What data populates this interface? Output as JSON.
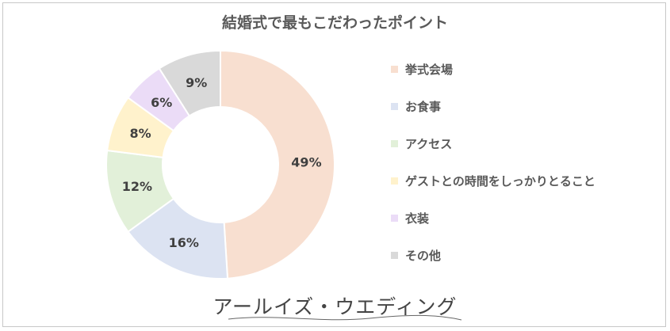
{
  "chart_data": {
    "type": "pie",
    "title": "結婚式で最もこだわったポイント",
    "categories": [
      "挙式会場",
      "お食事",
      "アクセス",
      "ゲストとの時間をしっかりとること",
      "衣装",
      "その他"
    ],
    "values": [
      49,
      16,
      12,
      8,
      6,
      9
    ],
    "value_labels": [
      "49%",
      "16%",
      "12%",
      "8%",
      "6%",
      "9%"
    ],
    "colors": [
      "#f8dfd0",
      "#dce3f2",
      "#e2f0d9",
      "#fff2cc",
      "#ebdcf7",
      "#d9d9d9"
    ],
    "donut": true,
    "legend_position": "right"
  },
  "brand": {
    "text": "アールイズ・ウエディング"
  }
}
